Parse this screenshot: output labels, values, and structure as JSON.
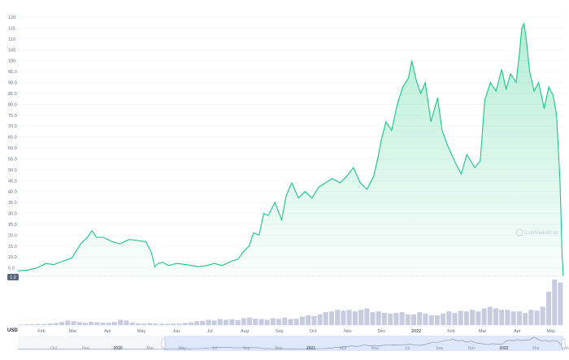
{
  "chart_data": {
    "type": "area",
    "title": "",
    "xlabel": "",
    "ylabel": "",
    "currency_label": "USD",
    "watermark": "CoinMarketCap",
    "current_price_label": "1.2",
    "line_color": "#16c784",
    "ylim": [
      0,
      120
    ],
    "y_ticks": [
      "5.0",
      "10.0",
      "15.0",
      "20.0",
      "25.0",
      "30.0",
      "35.0",
      "40.0",
      "45.0",
      "50.0",
      "55.0",
      "60.0",
      "65.0",
      "70.0",
      "75.0",
      "80.0",
      "85.0",
      "90.0",
      "95.0",
      "100",
      "105",
      "110",
      "115",
      "120"
    ],
    "x_ticks": [
      "Feb",
      "Mar",
      "Apr",
      "May",
      "Jun",
      "Jul",
      "Aug",
      "Sep",
      "Oct",
      "Nov",
      "Dec",
      "2022",
      "Feb",
      "Mar",
      "Apr",
      "May"
    ],
    "navigator_ticks": [
      "Oct",
      "Nov",
      "2020",
      "Mar",
      "May",
      "Jul",
      "Sep",
      "Nov",
      "2021",
      "Mar",
      "May",
      "Jul",
      "Sep",
      "Nov",
      "2022",
      "Mar",
      "May"
    ],
    "navigator_years": [
      "2020",
      "2021",
      "2022"
    ],
    "series": [
      {
        "type": "price",
        "x": [
          "2021-01-11",
          "2021-01-20",
          "2021-01-28",
          "2021-02-05",
          "2021-02-12",
          "2021-02-20",
          "2021-02-28",
          "2021-03-08",
          "2021-03-14",
          "2021-03-18",
          "2021-03-22",
          "2021-03-28",
          "2021-04-05",
          "2021-04-12",
          "2021-04-20",
          "2021-04-28",
          "2021-05-05",
          "2021-05-10",
          "2021-05-13",
          "2021-05-16",
          "2021-05-20",
          "2021-05-25",
          "2021-06-01",
          "2021-06-10",
          "2021-06-20",
          "2021-06-28",
          "2021-07-05",
          "2021-07-12",
          "2021-07-20",
          "2021-07-26",
          "2021-08-01",
          "2021-08-05",
          "2021-08-09",
          "2021-08-14",
          "2021-08-18",
          "2021-08-22",
          "2021-08-28",
          "2021-09-03",
          "2021-09-07",
          "2021-09-12",
          "2021-09-18",
          "2021-09-24",
          "2021-09-30",
          "2021-10-06",
          "2021-10-12",
          "2021-10-18",
          "2021-10-25",
          "2021-10-31",
          "2021-11-06",
          "2021-11-12",
          "2021-11-18",
          "2021-11-24",
          "2021-11-28",
          "2021-12-01",
          "2021-12-05",
          "2021-12-10",
          "2021-12-15",
          "2021-12-20",
          "2021-12-25",
          "2021-12-28",
          "2022-01-01",
          "2022-01-05",
          "2022-01-09",
          "2022-01-14",
          "2022-01-20",
          "2022-01-24",
          "2022-01-29",
          "2022-02-05",
          "2022-02-10",
          "2022-02-15",
          "2022-02-22",
          "2022-02-27",
          "2022-03-03",
          "2022-03-08",
          "2022-03-13",
          "2022-03-18",
          "2022-03-22",
          "2022-03-26",
          "2022-03-31",
          "2022-04-03",
          "2022-04-05",
          "2022-04-07",
          "2022-04-09",
          "2022-04-12",
          "2022-04-16",
          "2022-04-20",
          "2022-04-25",
          "2022-04-29",
          "2022-05-03",
          "2022-05-06",
          "2022-05-09",
          "2022-05-11",
          "2022-05-12"
        ],
        "y": [
          3.6,
          4,
          5,
          7,
          6.5,
          8,
          9.5,
          16,
          19,
          22,
          19,
          19,
          17,
          16,
          18,
          17.5,
          17,
          12,
          5.5,
          7,
          7.5,
          6,
          7,
          6.5,
          5.5,
          6,
          7,
          6,
          8,
          9,
          13,
          15,
          21,
          20,
          30,
          29,
          35,
          27,
          38,
          44,
          37,
          40,
          37,
          42,
          44,
          46,
          44,
          47,
          51,
          44,
          41,
          47,
          56,
          64,
          72,
          68,
          80,
          88,
          92,
          100,
          91,
          85,
          90,
          72,
          83,
          68,
          61,
          53,
          48,
          57,
          51,
          54,
          82,
          90,
          86,
          96,
          87,
          94,
          90,
          104,
          115,
          117,
          110,
          95,
          86,
          90,
          78,
          88,
          84,
          75,
          45,
          10,
          1.2
        ]
      },
      {
        "type": "volume",
        "values": [
          0.4,
          0.5,
          0.6,
          0.8,
          0.7,
          1.0,
          1.3,
          2.0,
          3.0,
          2.5,
          2.0,
          1.5,
          2.2,
          1.8,
          1.6,
          1.5,
          2.0,
          3.5,
          3.0,
          1.6,
          1.2,
          1.0,
          1.3,
          1.0,
          0.9,
          0.8,
          1.0,
          0.9,
          1.4,
          1.8,
          2.5,
          2.8,
          3.5,
          3.0,
          4.0,
          3.5,
          3.8,
          3.2,
          4.5,
          5.0,
          4.2,
          4.0,
          3.5,
          4.5,
          4.2,
          4.8,
          4.0,
          4.2,
          5.5,
          6.5,
          6.0,
          7.0,
          8.5,
          9.0,
          10.0,
          9.5,
          10.0,
          9.0,
          10.0,
          11.0,
          8.5,
          9.0,
          8.0,
          7.5,
          8.0,
          8.5,
          7.0,
          7.0,
          8.5,
          7.5,
          6.5,
          6.5,
          7.5,
          9.0,
          8.0,
          9.5,
          9.0,
          10.0,
          9.0,
          11.0,
          12.0,
          11.0,
          10.0,
          10.0,
          9.0,
          9.0,
          8.0,
          10.0,
          9.5,
          12.0,
          22.0,
          30.0,
          28.0
        ]
      }
    ]
  }
}
